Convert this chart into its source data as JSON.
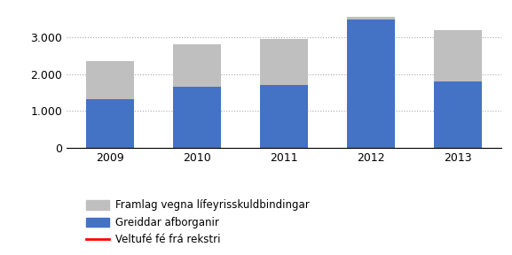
{
  "years": [
    "2009",
    "2010",
    "2011",
    "2012",
    "2013"
  ],
  "blue_values": [
    1320,
    1650,
    1700,
    3480,
    1790
  ],
  "gray_values": [
    1030,
    1150,
    1250,
    70,
    1410
  ],
  "blue_color": "#4472C4",
  "gray_color": "#BFBFBF",
  "red_color": "#FF0000",
  "yticks": [
    0,
    1000,
    2000,
    3000
  ],
  "ytick_labels": [
    "0",
    "1.000",
    "2.000",
    "3.000"
  ],
  "ylim": [
    0,
    3800
  ],
  "legend_labels": [
    "Framlag vegna lífeyrisskuldbindingar",
    "Greiddar afborganir",
    "Veltufé fé frá rekstri"
  ],
  "bar_width": 0.55,
  "figsize": [
    5.77,
    2.88
  ],
  "dpi": 100
}
